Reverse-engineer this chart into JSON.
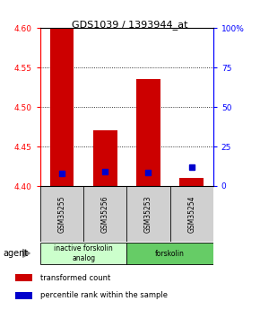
{
  "title": "GDS1039 / 1393944_at",
  "samples": [
    "GSM35255",
    "GSM35256",
    "GSM35253",
    "GSM35254"
  ],
  "bar_values": [
    4.6,
    4.47,
    4.535,
    4.41
  ],
  "bar_base": 4.4,
  "percentile_values": [
    8,
    9,
    8.5,
    12
  ],
  "bar_color": "#cc0000",
  "percentile_color": "#0000cc",
  "ylim": [
    4.4,
    4.6
  ],
  "y2lim": [
    0,
    100
  ],
  "yticks": [
    4.4,
    4.45,
    4.5,
    4.55,
    4.6
  ],
  "y2ticks": [
    0,
    25,
    50,
    75,
    100
  ],
  "gridlines": [
    4.45,
    4.5,
    4.55
  ],
  "groups": [
    {
      "label": "inactive forskolin\nanalog",
      "samples": [
        0,
        1
      ],
      "color": "#ccffcc"
    },
    {
      "label": "forskolin",
      "samples": [
        2,
        3
      ],
      "color": "#66cc66"
    }
  ],
  "agent_label": "agent",
  "legend_items": [
    {
      "label": "transformed count",
      "color": "#cc0000"
    },
    {
      "label": "percentile rank within the sample",
      "color": "#0000cc"
    }
  ],
  "bar_width": 0.55,
  "plot_bg": "#ffffff",
  "sample_bg": "#d0d0d0"
}
